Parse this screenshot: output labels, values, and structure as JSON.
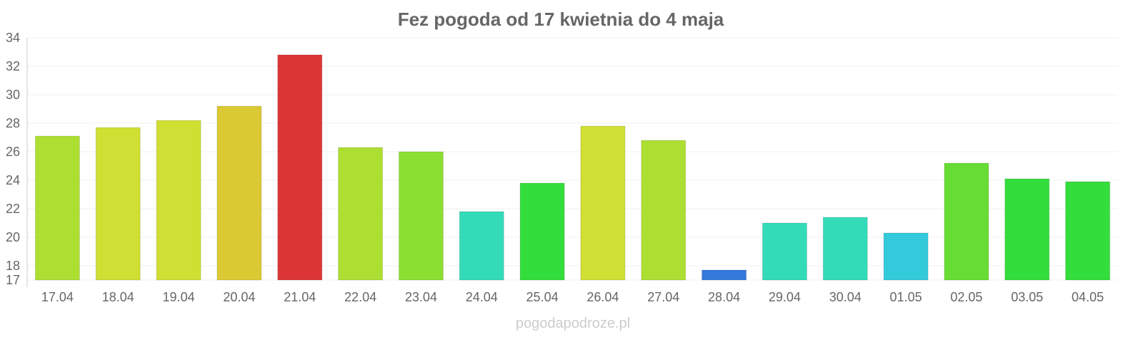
{
  "chart_data": {
    "type": "bar",
    "title": "Fez pogoda od 17 kwietnia do 4 maja",
    "xlabel": "",
    "ylabel": "",
    "ylim": [
      17,
      34
    ],
    "yticks": [
      17,
      18,
      20,
      22,
      24,
      26,
      28,
      30,
      32,
      34
    ],
    "grid": true,
    "categories": [
      "17.04",
      "18.04",
      "19.04",
      "20.04",
      "21.04",
      "22.04",
      "23.04",
      "24.04",
      "25.04",
      "26.04",
      "27.04",
      "28.04",
      "29.04",
      "30.04",
      "01.05",
      "02.05",
      "03.05",
      "04.05"
    ],
    "values": [
      27.1,
      27.7,
      28.2,
      29.2,
      32.8,
      26.3,
      26.0,
      21.8,
      23.8,
      27.8,
      26.8,
      17.7,
      21.0,
      21.4,
      20.3,
      25.2,
      24.1,
      23.9
    ],
    "colors": [
      "#addf33",
      "#cfdf33",
      "#cfdf33",
      "#dbc933",
      "#db3535",
      "#addf33",
      "#8bdf33",
      "#33dbb9",
      "#33dd3b",
      "#cfdf33",
      "#addf33",
      "#3379db",
      "#33dbb9",
      "#33dbb9",
      "#33cbdb",
      "#67dd33",
      "#33dd3b",
      "#33dd3b"
    ]
  },
  "footer": "pogodapodroze.pl"
}
